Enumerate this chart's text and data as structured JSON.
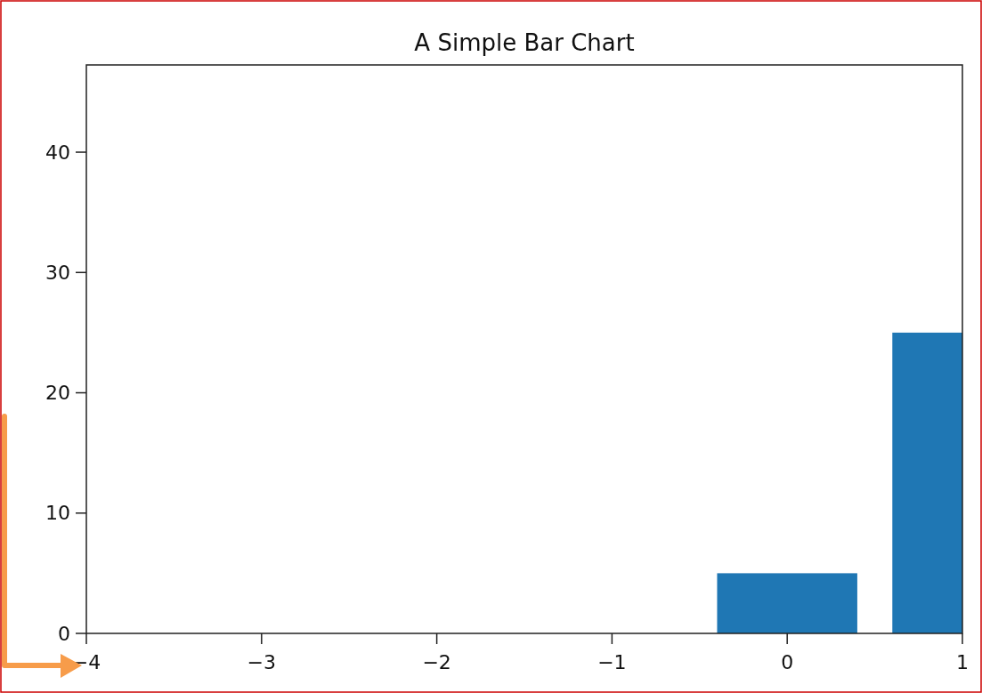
{
  "chart_data": {
    "type": "bar",
    "title": "A Simple Bar Chart",
    "x": [
      0,
      1
    ],
    "values": [
      5,
      25
    ],
    "color": "#1f77b4",
    "xlim": [
      -4,
      1
    ],
    "xticks": [
      {
        "value": -4,
        "label": "−4"
      },
      {
        "value": -3,
        "label": "−3"
      },
      {
        "value": -2,
        "label": "−2"
      },
      {
        "value": -1,
        "label": "−1"
      },
      0,
      1
    ],
    "ylim": [
      0,
      47.25
    ],
    "yticks": [
      0,
      10,
      20,
      30,
      40
    ],
    "grid": false
  }
}
